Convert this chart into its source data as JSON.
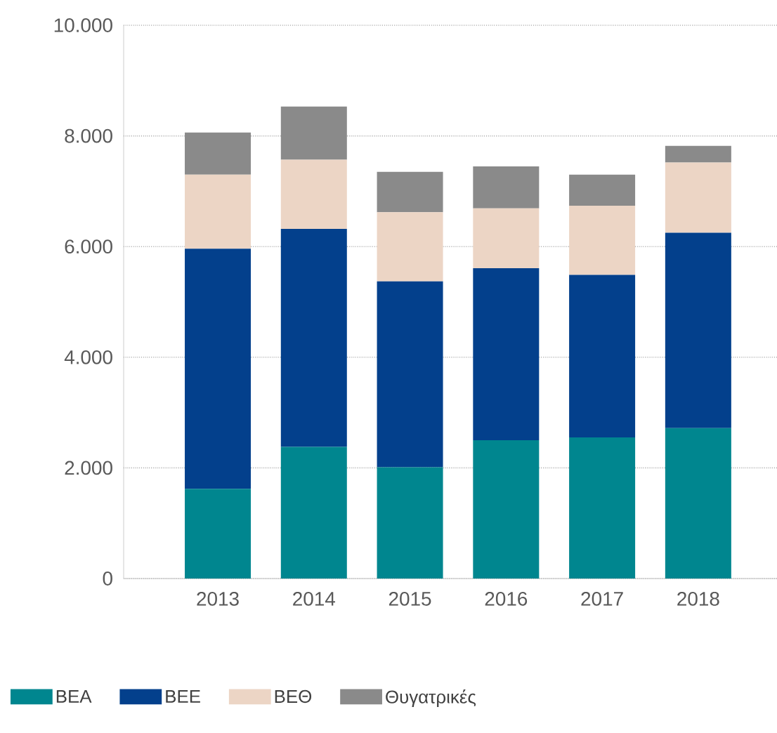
{
  "chart_data": {
    "type": "bar",
    "stacked": true,
    "categories": [
      "2013",
      "2014",
      "2015",
      "2016",
      "2017",
      "2018"
    ],
    "series": [
      {
        "name": "ΒΕΑ",
        "color": "#00868f",
        "values": [
          1620,
          2380,
          2010,
          2500,
          2550,
          2720
        ]
      },
      {
        "name": "ΒΕΕ",
        "color": "#03408c",
        "values": [
          4340,
          3940,
          3360,
          3110,
          2940,
          3530
        ]
      },
      {
        "name": "ΒΕΘ",
        "color": "#ecd5c5",
        "values": [
          1340,
          1250,
          1250,
          1080,
          1250,
          1270
        ]
      },
      {
        "name": "Θυγατρικές",
        "color": "#8a8a8a",
        "values": [
          760,
          960,
          730,
          760,
          560,
          300
        ]
      }
    ],
    "ylim": [
      0,
      10000
    ],
    "yticks": [
      0,
      {
        "value": 2000,
        "label": "2.000"
      },
      {
        "value": 4000,
        "label": "4.000"
      },
      {
        "value": 6000,
        "label": "6.000"
      },
      {
        "value": 8000,
        "label": "8.000"
      },
      {
        "value": 10000,
        "label": "10.000"
      }
    ],
    "grid": "y",
    "legend": "bottom"
  }
}
